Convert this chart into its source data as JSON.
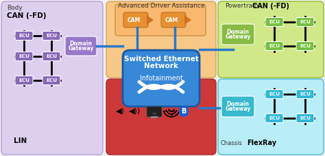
{
  "bg_color": "#f0f0f0",
  "body_bg": "#ddd0ee",
  "ecu_color_purple": "#8868b8",
  "ecu_color_green": "#78c040",
  "ecu_color_cyan": "#30b8d8",
  "domain_gw_color_purple": "#9878c8",
  "domain_gw_color_green": "#88bb44",
  "domain_gw_color_cyan": "#38b8cc",
  "switched_eth_color": "#3888d8",
  "infotainment_color": "#cc3838",
  "adv_driver_bg": "#f8c888",
  "powertrain_bg": "#d0e888",
  "chassis_bg": "#b8eef8",
  "cam_color": "#e89030",
  "blue_line": "#2878c8",
  "powertrain_label": "Powertrain",
  "powertrain_can": "CAN (-FD)",
  "body_label": "Body",
  "body_can": "CAN (-FD)",
  "body_lin": "LIN",
  "ada_label": "Advanced Driver Assistance",
  "eth_label1": "Switched Ethernet",
  "eth_label2": "Network",
  "info_label": "Infotainment",
  "chassis_label": "Chassis",
  "flexray_label": "FlexRay"
}
